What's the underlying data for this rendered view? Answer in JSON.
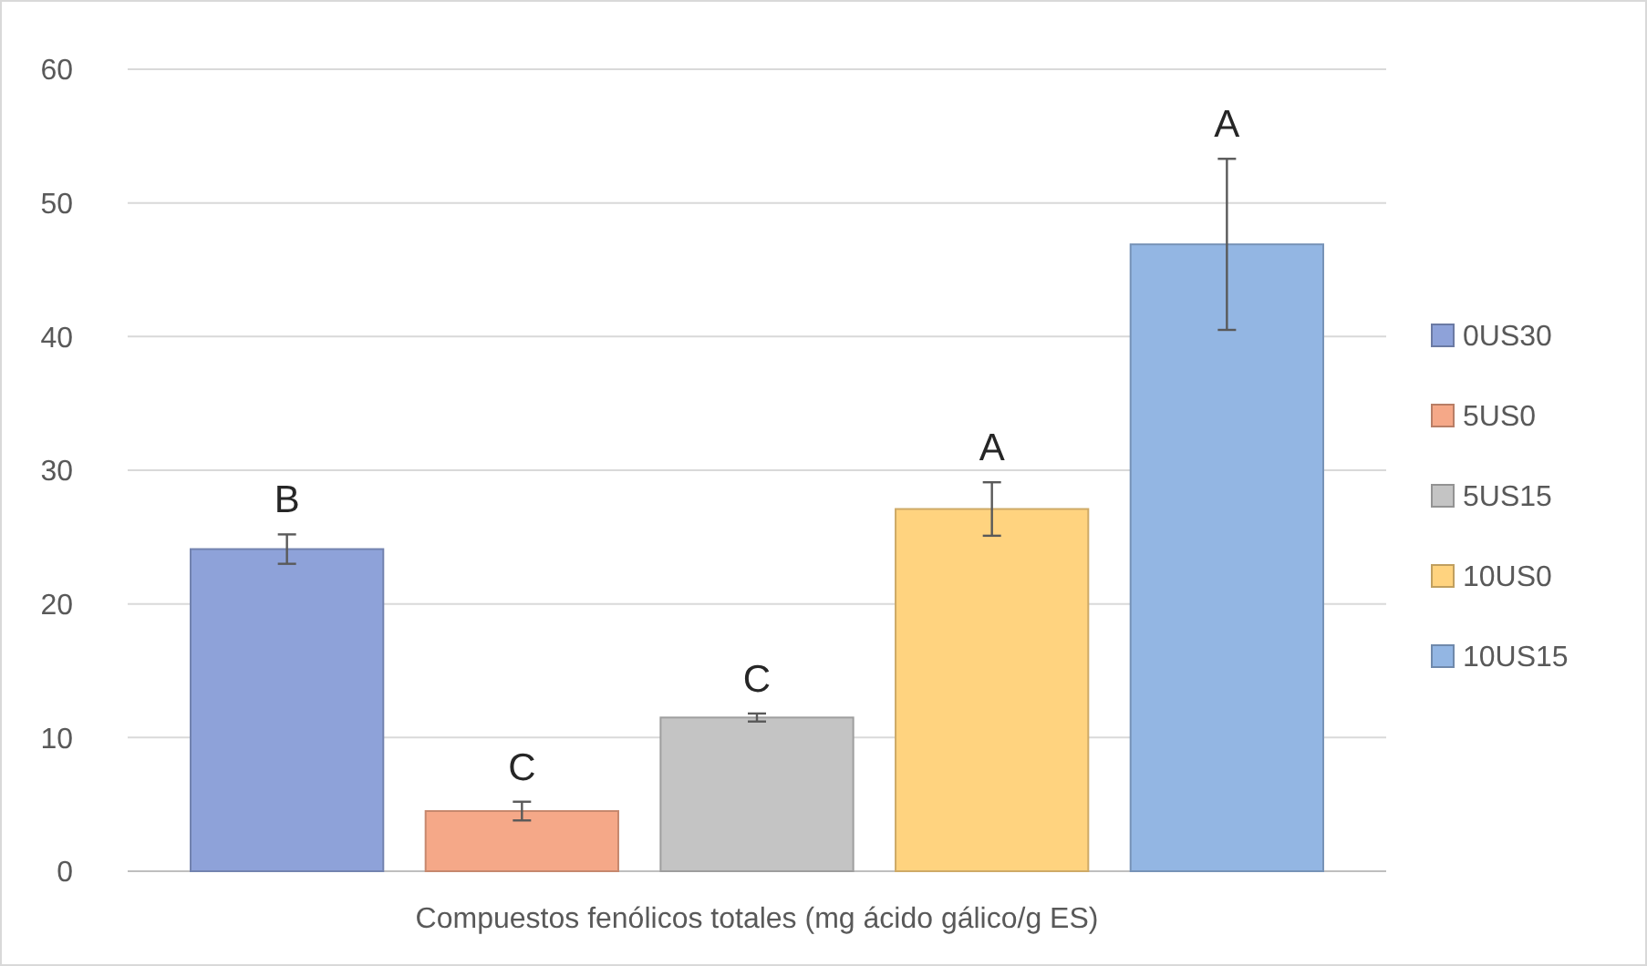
{
  "chart_data": {
    "type": "bar",
    "categories": [
      "Compuestos fenólicos totales (mg ácido gálico/g ES)"
    ],
    "series": [
      {
        "name": "0US30",
        "color": "#8ea2d9",
        "values": [
          24.1
        ],
        "errors": [
          1.1
        ],
        "value_labels": [
          "B"
        ]
      },
      {
        "name": "5US0",
        "color": "#f5a888",
        "values": [
          4.5
        ],
        "errors": [
          0.7
        ],
        "value_labels": [
          "C"
        ]
      },
      {
        "name": "5US15",
        "color": "#c4c4c4",
        "values": [
          11.5
        ],
        "errors": [
          0.3
        ],
        "value_labels": [
          "C"
        ]
      },
      {
        "name": "10US0",
        "color": "#ffd37f",
        "values": [
          27.1
        ],
        "errors": [
          2
        ],
        "value_labels": [
          "A"
        ]
      },
      {
        "name": "10US15",
        "color": "#93b6e3",
        "values": [
          46.9
        ],
        "errors": [
          6.4
        ],
        "value_labels": [
          "A"
        ]
      }
    ],
    "ylim": [
      0,
      60
    ],
    "yticks": [
      0,
      10,
      20,
      30,
      40,
      50,
      60
    ],
    "grid": "y",
    "legend": "right"
  }
}
